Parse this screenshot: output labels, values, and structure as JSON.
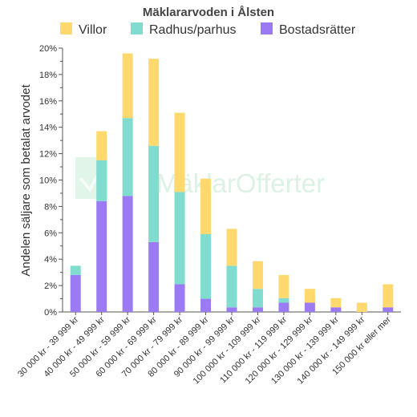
{
  "chart_data": {
    "type": "bar",
    "stacked": true,
    "title": "Mäklararvoden i Ålsten",
    "ylabel": "Andelen säljare som betalat arvodet",
    "xlabel": "",
    "ylim": [
      0,
      20
    ],
    "ytick_step": 2,
    "ytick_suffix": "%",
    "grid": false,
    "legend_position": "top",
    "categories": [
      "30 000 kr - 39 999 kr",
      "40 000 kr - 49 999 kr",
      "50 000 kr - 59 999 kr",
      "60 000 kr - 69 999 kr",
      "70 000 kr - 79 999 kr",
      "80 000 kr - 89 999 kr",
      "90 000 kr - 99 999 kr",
      "100 000 kr - 109 999 kr",
      "110 000 kr - 119 999 kr",
      "120 000 kr - 129 999 kr",
      "130 000 kr - 139 999 kr",
      "140 000 kr - 149 999 kr",
      "150 000 kr eller mer"
    ],
    "series": [
      {
        "name": "Bostadsrätter",
        "color": "#9b7bf3",
        "values": [
          2.8,
          8.4,
          8.8,
          5.3,
          2.1,
          1.0,
          0.35,
          0.35,
          0.7,
          0.7,
          0.35,
          0.0,
          0.35
        ]
      },
      {
        "name": "Radhus/parhus",
        "color": "#7fdccf",
        "values": [
          0.7,
          3.1,
          5.9,
          7.3,
          7.0,
          4.9,
          3.15,
          1.4,
          0.35,
          0.0,
          0.0,
          0.0,
          0.0
        ]
      },
      {
        "name": "Villor",
        "color": "#ffd86e",
        "values": [
          0.0,
          2.2,
          4.9,
          6.6,
          6.0,
          4.2,
          2.8,
          2.1,
          1.75,
          1.05,
          0.7,
          0.7,
          1.75
        ]
      }
    ],
    "legend_order": [
      "Villor",
      "Radhus/parhus",
      "Bostadsrätter"
    ]
  },
  "watermark": {
    "text": "MäklarOfferter",
    "icon": "house-check-icon",
    "color": "#bfe8cf"
  }
}
